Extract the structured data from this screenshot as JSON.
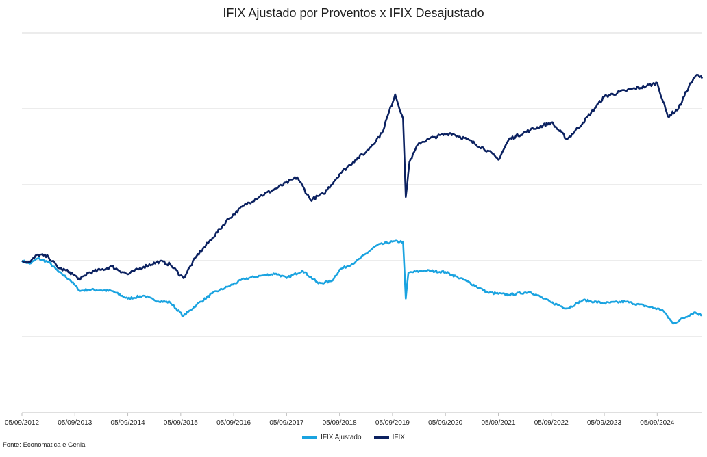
{
  "chart_data": {
    "type": "line",
    "title": "IFIX Ajustado por Proventos x IFIX Desajustado",
    "xlabel": "",
    "ylabel": "",
    "x_ticks": [
      "05/09/2012",
      "05/09/2013",
      "05/09/2014",
      "05/09/2015",
      "05/09/2016",
      "05/09/2017",
      "05/09/2018",
      "05/09/2019",
      "05/09/2020",
      "05/09/2021",
      "05/09/2022",
      "05/09/2023",
      "05/09/2024"
    ],
    "ylim": [
      0,
      5
    ],
    "grid": true,
    "legend": "bottom",
    "series": [
      {
        "name": "IFIX Ajustado",
        "color": "#1aa3e0",
        "points": [
          [
            0.0,
            2.0
          ],
          [
            0.15,
            1.96
          ],
          [
            0.3,
            2.03
          ],
          [
            0.5,
            1.98
          ],
          [
            0.7,
            1.85
          ],
          [
            0.9,
            1.75
          ],
          [
            1.1,
            1.6
          ],
          [
            1.25,
            1.62
          ],
          [
            1.5,
            1.61
          ],
          [
            1.7,
            1.6
          ],
          [
            2.0,
            1.5
          ],
          [
            2.3,
            1.54
          ],
          [
            2.5,
            1.48
          ],
          [
            2.8,
            1.45
          ],
          [
            3.05,
            1.27
          ],
          [
            3.3,
            1.42
          ],
          [
            3.6,
            1.57
          ],
          [
            3.9,
            1.66
          ],
          [
            4.2,
            1.76
          ],
          [
            4.5,
            1.8
          ],
          [
            4.8,
            1.83
          ],
          [
            5.0,
            1.77
          ],
          [
            5.3,
            1.87
          ],
          [
            5.6,
            1.7
          ],
          [
            5.85,
            1.73
          ],
          [
            6.0,
            1.88
          ],
          [
            6.3,
            1.98
          ],
          [
            6.7,
            2.2
          ],
          [
            7.0,
            2.25
          ],
          [
            7.2,
            2.25
          ],
          [
            7.25,
            1.5
          ],
          [
            7.3,
            1.84
          ],
          [
            7.6,
            1.87
          ],
          [
            8.0,
            1.85
          ],
          [
            8.4,
            1.73
          ],
          [
            8.8,
            1.58
          ],
          [
            9.2,
            1.55
          ],
          [
            9.6,
            1.59
          ],
          [
            10.0,
            1.45
          ],
          [
            10.3,
            1.37
          ],
          [
            10.6,
            1.48
          ],
          [
            11.0,
            1.44
          ],
          [
            11.4,
            1.46
          ],
          [
            11.8,
            1.4
          ],
          [
            12.1,
            1.35
          ],
          [
            12.3,
            1.17
          ],
          [
            12.7,
            1.32
          ],
          [
            12.85,
            1.28
          ]
        ]
      },
      {
        "name": "IFIX",
        "color": "#0b2160",
        "points": [
          [
            0.0,
            2.0
          ],
          [
            0.15,
            1.98
          ],
          [
            0.3,
            2.08
          ],
          [
            0.5,
            2.05
          ],
          [
            0.7,
            1.9
          ],
          [
            0.9,
            1.85
          ],
          [
            1.1,
            1.75
          ],
          [
            1.25,
            1.84
          ],
          [
            1.5,
            1.88
          ],
          [
            1.7,
            1.92
          ],
          [
            2.0,
            1.82
          ],
          [
            2.3,
            1.92
          ],
          [
            2.6,
            1.99
          ],
          [
            2.8,
            1.95
          ],
          [
            3.05,
            1.77
          ],
          [
            3.3,
            2.06
          ],
          [
            3.6,
            2.3
          ],
          [
            3.9,
            2.55
          ],
          [
            4.2,
            2.73
          ],
          [
            4.5,
            2.85
          ],
          [
            4.8,
            2.95
          ],
          [
            5.2,
            3.1
          ],
          [
            5.45,
            2.8
          ],
          [
            5.7,
            2.88
          ],
          [
            6.0,
            3.14
          ],
          [
            6.3,
            3.33
          ],
          [
            6.5,
            3.43
          ],
          [
            6.8,
            3.68
          ],
          [
            7.05,
            4.19
          ],
          [
            7.2,
            3.87
          ],
          [
            7.25,
            2.84
          ],
          [
            7.32,
            3.3
          ],
          [
            7.5,
            3.55
          ],
          [
            7.8,
            3.63
          ],
          [
            8.1,
            3.68
          ],
          [
            8.4,
            3.6
          ],
          [
            8.8,
            3.45
          ],
          [
            9.0,
            3.33
          ],
          [
            9.2,
            3.6
          ],
          [
            9.6,
            3.72
          ],
          [
            10.0,
            3.82
          ],
          [
            10.3,
            3.6
          ],
          [
            10.6,
            3.82
          ],
          [
            11.0,
            4.16
          ],
          [
            11.4,
            4.24
          ],
          [
            11.8,
            4.3
          ],
          [
            12.0,
            4.34
          ],
          [
            12.2,
            3.9
          ],
          [
            12.4,
            4.0
          ],
          [
            12.6,
            4.3
          ],
          [
            12.75,
            4.45
          ],
          [
            12.85,
            4.4
          ]
        ]
      }
    ]
  },
  "source": "Fonte: Economatica e Genial"
}
